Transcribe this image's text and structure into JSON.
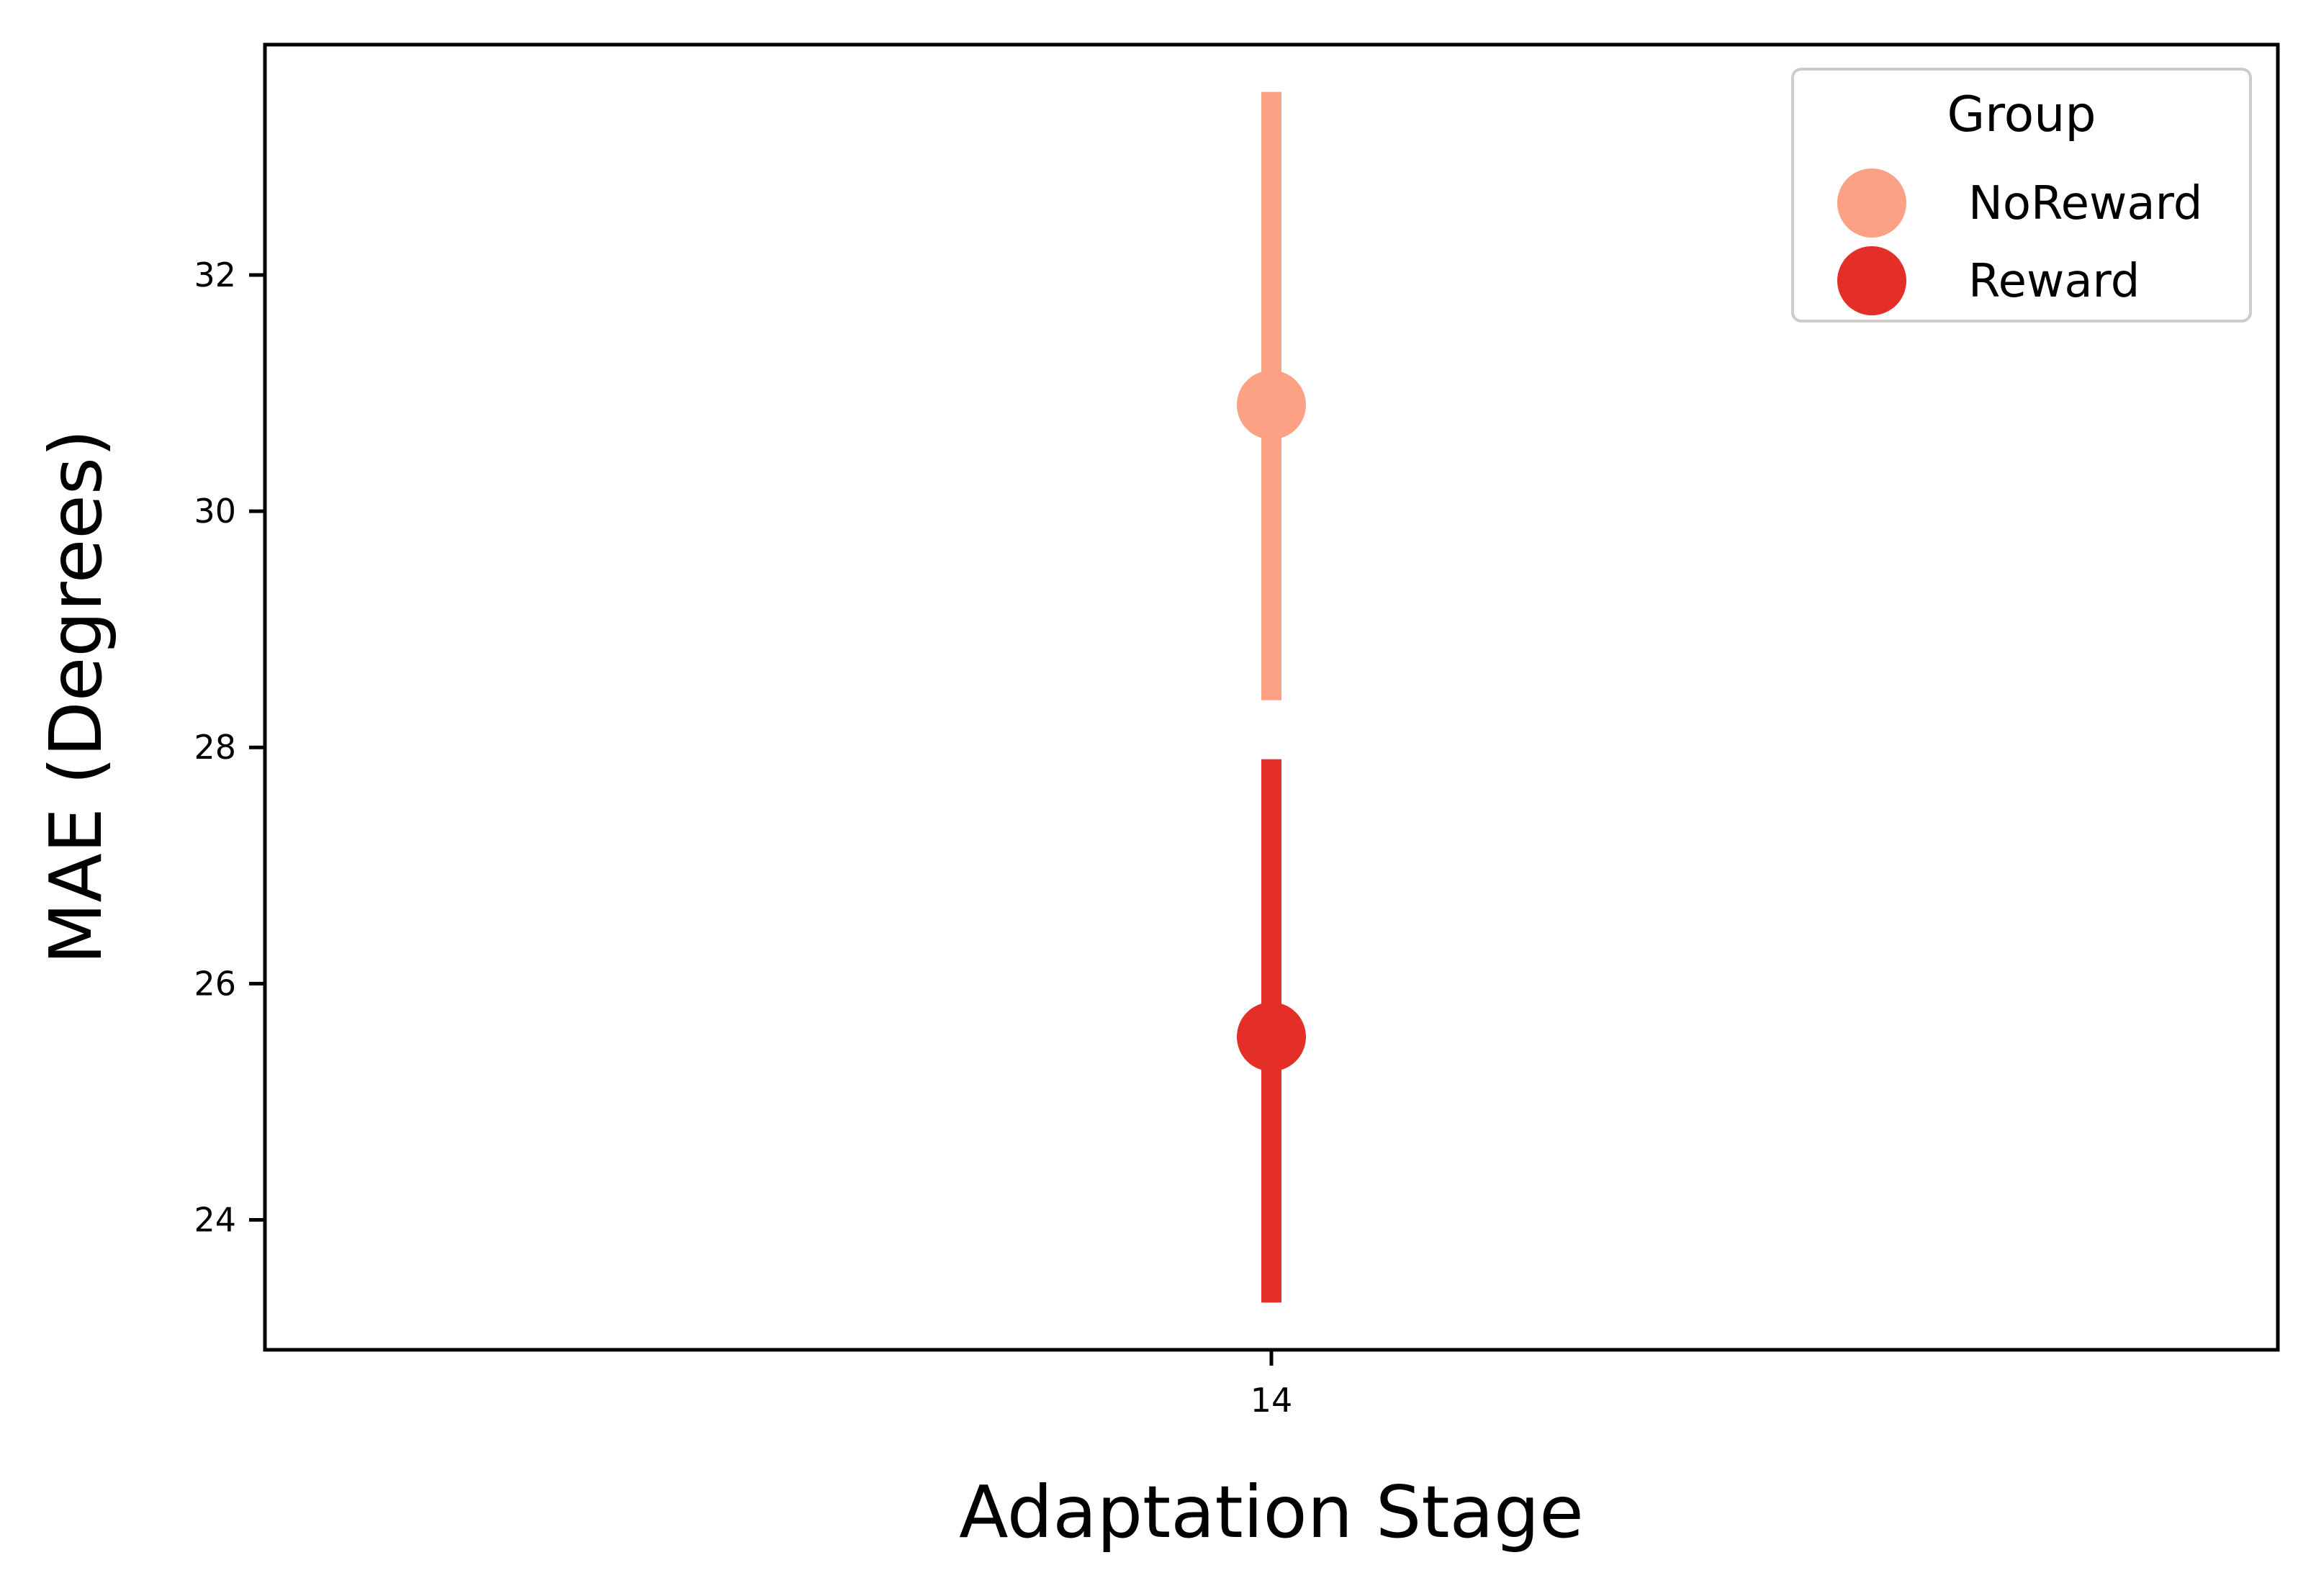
{
  "chart_data": {
    "type": "scatter",
    "title": "",
    "xlabel": "Adaptation Stage",
    "ylabel": "MAE (Degrees)",
    "categories": [
      "14"
    ],
    "ylim": [
      22.9,
      33.95
    ],
    "yticks": [
      24,
      26,
      28,
      30,
      32
    ],
    "grid": false,
    "legend": {
      "title": "Group",
      "placement": "top-right"
    },
    "series": [
      {
        "name": "NoReward",
        "color": "#fca183",
        "values": [
          30.9
        ],
        "ci_low": [
          28.4
        ],
        "ci_high": [
          33.55
        ]
      },
      {
        "name": "Reward",
        "color": "#e32f27",
        "values": [
          25.55
        ],
        "ci_low": [
          23.3
        ],
        "ci_high": [
          27.9
        ]
      }
    ]
  }
}
